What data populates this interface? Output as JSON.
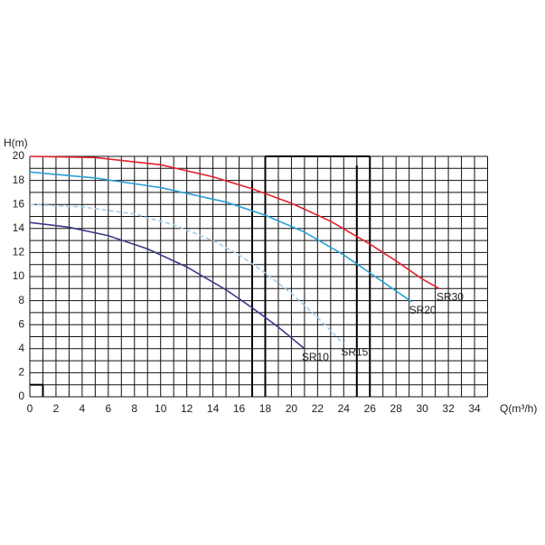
{
  "chart_data": {
    "type": "line",
    "ylabel": "H(m)",
    "xlabel": "Q(m³/h)",
    "xlim": [
      0,
      35
    ],
    "ylim": [
      0,
      20
    ],
    "xticks": [
      0,
      2,
      4,
      6,
      8,
      10,
      12,
      14,
      16,
      18,
      20,
      22,
      24,
      26,
      28,
      30,
      32,
      34
    ],
    "yticks": [
      0,
      2,
      4,
      6,
      8,
      10,
      12,
      14,
      16,
      18,
      20
    ],
    "xgrid": [
      0,
      1,
      2,
      3,
      4,
      5,
      6,
      7,
      8,
      9,
      10,
      11,
      12,
      13,
      14,
      15,
      16,
      17,
      18,
      19,
      20,
      21,
      22,
      23,
      24,
      25,
      26,
      27,
      28,
      29,
      30,
      31,
      32,
      33,
      34,
      35
    ],
    "ygrid": [
      0,
      1,
      2,
      3,
      4,
      5,
      6,
      7,
      8,
      9,
      10,
      11,
      12,
      13,
      14,
      15,
      16,
      17,
      18,
      19,
      20
    ],
    "series": [
      {
        "name": "SR30",
        "color": "#e3202b",
        "dashed": false,
        "x": [
          0,
          5,
          10,
          14,
          17,
          20,
          23,
          26,
          28,
          30,
          31.3
        ],
        "values": [
          20,
          19.9,
          19.3,
          18.3,
          17.3,
          16.1,
          14.6,
          12.7,
          11.3,
          9.8,
          9
        ]
      },
      {
        "name": "SR20",
        "color": "#2a9fd6",
        "dashed": false,
        "x": [
          0,
          5,
          10,
          15,
          18,
          21,
          24,
          26,
          28,
          29.2
        ],
        "values": [
          18.7,
          18.2,
          17.4,
          16.2,
          15.1,
          13.7,
          11.8,
          10.3,
          8.8,
          7.9
        ]
      },
      {
        "name": "SR15",
        "color": "#9fcdeb",
        "dashed": true,
        "x": [
          0,
          4,
          8,
          11,
          14,
          16,
          18,
          20,
          22,
          24
        ],
        "values": [
          16,
          15.8,
          15.2,
          14.3,
          13,
          11.8,
          10.3,
          8.6,
          6.6,
          4.4
        ]
      },
      {
        "name": "SR10",
        "color": "#3b3a8a",
        "dashed": false,
        "x": [
          0,
          3,
          6,
          9,
          12,
          15,
          17,
          19,
          21
        ],
        "values": [
          14.5,
          14.1,
          13.4,
          12.3,
          10.8,
          8.9,
          7.4,
          5.8,
          4
        ]
      }
    ]
  }
}
